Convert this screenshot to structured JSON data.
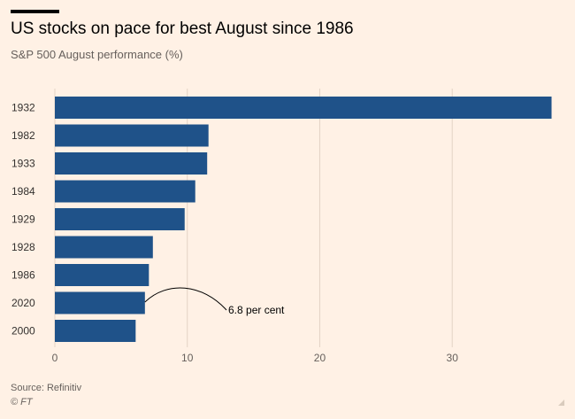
{
  "header": {
    "title": "US stocks on pace for best August since 1986",
    "subtitle": "S&P 500 August performance (%)"
  },
  "footer": {
    "source": "Source: Refinitiv",
    "credit": "© FT"
  },
  "colors": {
    "bar": "#1f5289",
    "grid": "#e3d3c5",
    "background": "#fff1e5"
  },
  "chart_data": {
    "type": "bar",
    "orientation": "horizontal",
    "title": "US stocks on pace for best August since 1986",
    "subtitle": "S&P 500 August performance (%)",
    "xlabel": "",
    "ylabel": "",
    "categories": [
      "1932",
      "1982",
      "1933",
      "1984",
      "1929",
      "1928",
      "1986",
      "2020",
      "2000"
    ],
    "values": [
      37.5,
      11.6,
      11.5,
      10.6,
      9.8,
      7.4,
      7.1,
      6.8,
      6.1
    ],
    "xlim": [
      0,
      37.8
    ],
    "xticks": [
      0,
      10,
      20,
      30
    ],
    "grid": true,
    "annotations": [
      {
        "category": "2020",
        "text": "6.8 per cent"
      }
    ]
  }
}
